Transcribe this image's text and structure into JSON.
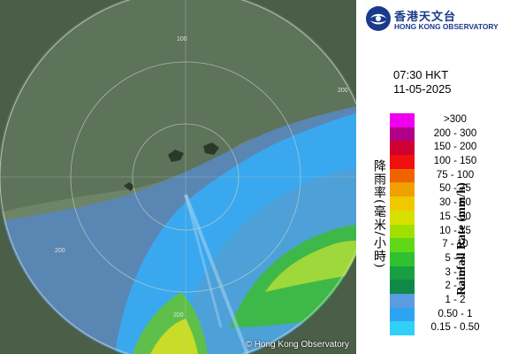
{
  "map": {
    "copyright": "© Hong Kong Observatory",
    "range_labels": [
      "100",
      "200",
      "200",
      "200"
    ]
  },
  "header": {
    "logo_chinese": "香港天文台",
    "logo_english": "HONG KONG OBSERVATORY"
  },
  "timestamp": {
    "time": "07:30 HKT",
    "date": "11-05-2025"
  },
  "legend": {
    "title_chinese": "降雨率(毫米/小時)",
    "title_english": "Rainfall Rate (mm/h)",
    "items": [
      {
        "label": ">300",
        "color": "#ee00ee"
      },
      {
        "label": "200 - 300",
        "color": "#b0008a"
      },
      {
        "label": "150 - 200",
        "color": "#d00030"
      },
      {
        "label": "100 - 150",
        "color": "#f01010"
      },
      {
        "label": "75 - 100",
        "color": "#f06400"
      },
      {
        "label": "50 - 75",
        "color": "#f0a000"
      },
      {
        "label": "30 - 50",
        "color": "#f0c800"
      },
      {
        "label": "15 - 30",
        "color": "#d8e000"
      },
      {
        "label": "10 - 15",
        "color": "#a0e000"
      },
      {
        "label": "7 - 10",
        "color": "#60d818"
      },
      {
        "label": "5 - 7",
        "color": "#30c030"
      },
      {
        "label": "3 - 5",
        "color": "#18a040"
      },
      {
        "label": "2 - 3",
        "color": "#108848"
      },
      {
        "label": "1 - 2",
        "color": "#5a9ce0"
      },
      {
        "label": "0.50 - 1",
        "color": "#2ca4f0"
      },
      {
        "label": "0.15 - 0.50",
        "color": "#30d0f8"
      }
    ]
  }
}
